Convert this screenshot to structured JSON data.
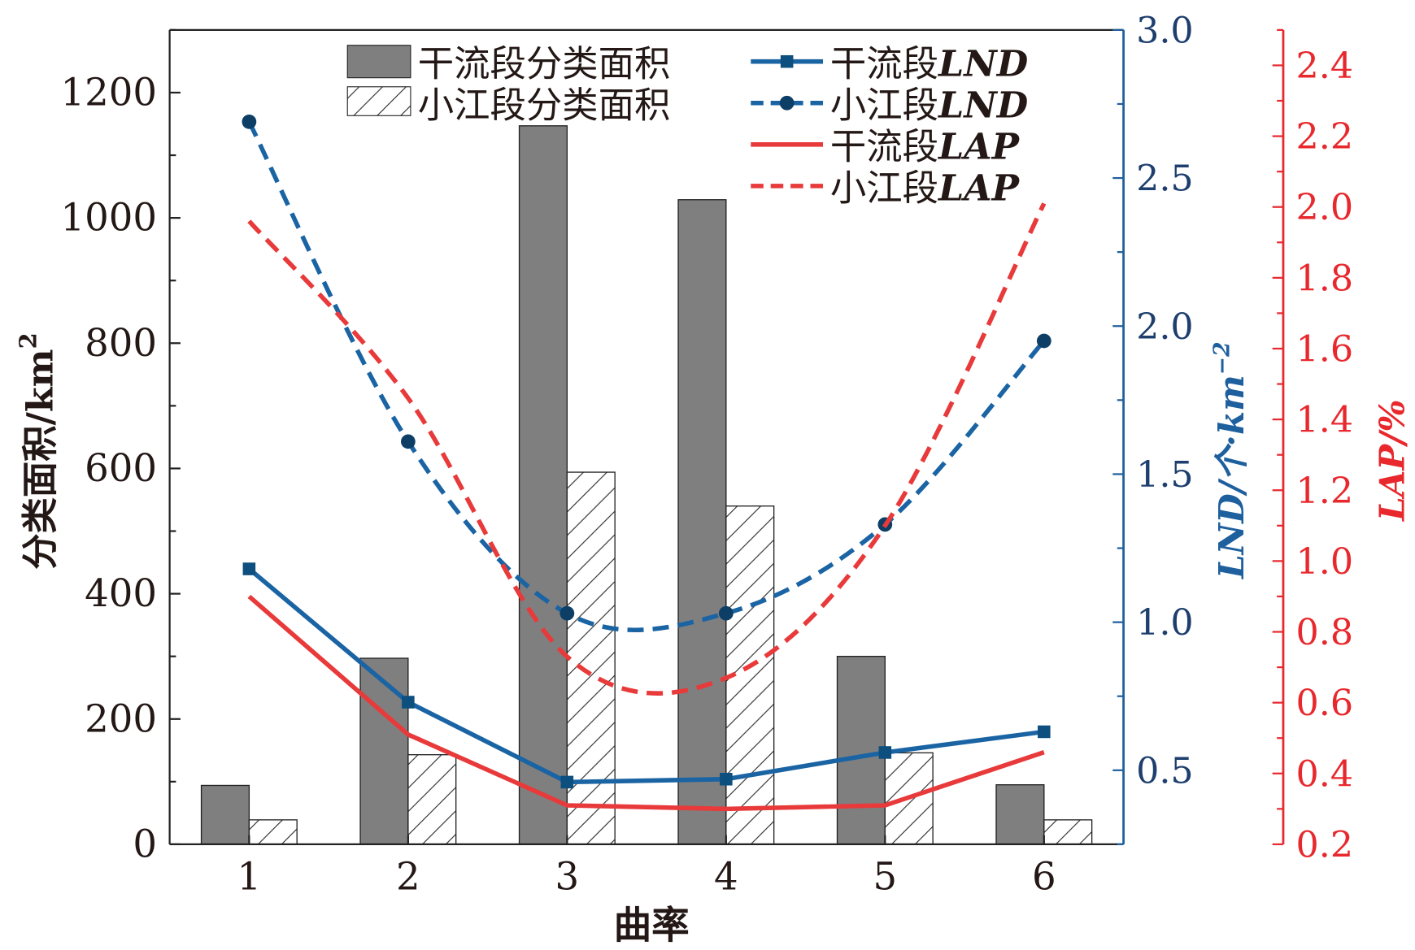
{
  "chart_data": {
    "type": "bar+line",
    "xlabel": "曲率",
    "categories": [
      "1",
      "2",
      "3",
      "4",
      "5",
      "6"
    ],
    "x": [
      1,
      2,
      3,
      4,
      5,
      6
    ],
    "xlim": [
      0.5,
      6.5
    ],
    "left_axis": {
      "label": "分类面积/km²",
      "label_main": "分类面积/km",
      "label_sup": "2",
      "ylim": [
        0,
        1300
      ],
      "ticks": [
        0,
        200,
        400,
        600,
        800,
        1000,
        1200
      ],
      "color": "#231815"
    },
    "lnd_axis": {
      "label": "LND/个·km⁻²",
      "label_main": "LND/个·km",
      "label_sup": "−2",
      "ylim": [
        0.25,
        3.0
      ],
      "ticks": [
        0.5,
        1.0,
        1.5,
        2.0,
        2.5,
        3.0
      ],
      "tick_labels": [
        "0.5",
        "1.0",
        "1.5",
        "2.0",
        "2.5",
        "3.0"
      ],
      "color": "#1e5f9e"
    },
    "lap_axis": {
      "label": "LAP/%",
      "ylim": [
        0.2,
        2.5
      ],
      "ticks": [
        0.2,
        0.4,
        0.6,
        0.8,
        1.0,
        1.2,
        1.4,
        1.6,
        1.8,
        2.0,
        2.2,
        2.4
      ],
      "tick_labels": [
        "0.2",
        "0.4",
        "0.6",
        "0.8",
        "1.0",
        "1.2",
        "1.4",
        "1.6",
        "1.8",
        "2.0",
        "2.2",
        "2.4"
      ],
      "color": "#e8282d"
    },
    "series": [
      {
        "name": "干流段分类面积",
        "type": "bar",
        "axis": "left",
        "color": "#7f7f7f",
        "values": [
          94,
          297,
          1147,
          1029,
          300,
          95
        ]
      },
      {
        "name": "小江段分类面积",
        "type": "bar-hatched",
        "axis": "left",
        "color": "#ffffff",
        "values": [
          39,
          143,
          594,
          540,
          146,
          39
        ]
      },
      {
        "name": "干流段LND",
        "name_cn": "干流段",
        "name_en": "LND",
        "type": "line",
        "style": "solid",
        "marker": "square",
        "axis": "lnd",
        "color": "#1a64a4",
        "values": [
          1.18,
          0.73,
          0.46,
          0.47,
          0.56,
          0.63
        ]
      },
      {
        "name": "小江段LND",
        "name_cn": "小江段",
        "name_en": "LND",
        "type": "line",
        "style": "dashed",
        "marker": "circle",
        "axis": "lnd",
        "color": "#1a64a4",
        "values": [
          2.69,
          1.61,
          1.03,
          1.03,
          1.33,
          1.95
        ]
      },
      {
        "name": "干流段LAP",
        "name_cn": "干流段",
        "name_en": "LAP",
        "type": "line",
        "style": "solid",
        "marker": "none",
        "axis": "lap",
        "color": "#e83a3a",
        "values": [
          0.9,
          0.51,
          0.31,
          0.3,
          0.31,
          0.46
        ]
      },
      {
        "name": "小江段LAP",
        "name_cn": "小江段",
        "name_en": "LAP",
        "type": "line",
        "style": "dashed",
        "marker": "none",
        "axis": "lap",
        "color": "#e83a3a",
        "values": [
          1.96,
          1.46,
          0.73,
          0.67,
          1.1,
          2.01
        ]
      }
    ],
    "legend": "top"
  }
}
